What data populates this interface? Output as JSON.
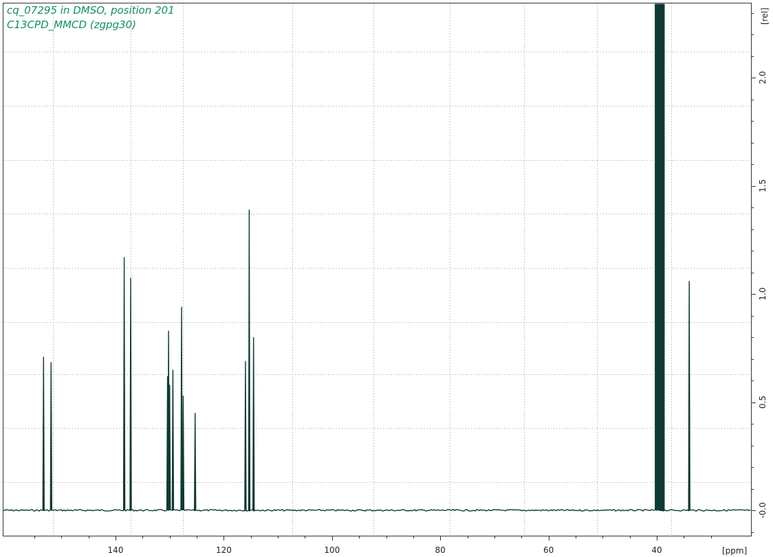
{
  "window": {
    "title_line1": "cq_07295 in DMSO, position 201",
    "title_line2": "C13CPD_MMCD (zgpg30)"
  },
  "colors": {
    "spectrum": "#0e3a34",
    "title": "#109060",
    "grid": "#9aa4a8",
    "axis": "#333333",
    "background": "#ffffff"
  },
  "chart_data": {
    "type": "line",
    "title": "cq_07295 in DMSO, position 201",
    "subtitle": "C13CPD_MMCD (zgpg30)",
    "xlabel": "[ppm]",
    "ylabel": "[rel]",
    "x_reversed": true,
    "xlim": [
      158.5,
      27.8
    ],
    "ylim": [
      -0.1,
      2.35
    ],
    "x_ticks": [
      140,
      120,
      100,
      80,
      60,
      40
    ],
    "y_ticks": [
      0.0,
      0.5,
      1.0,
      1.5,
      2.0
    ],
    "y_tick_labels": [
      "-0.0",
      "0.5",
      "1.0",
      "1.5",
      "2.0"
    ],
    "grid": true,
    "grid_x": [
      151.6,
      137.2,
      127.6,
      107.4,
      92.3,
      78.2,
      64.5,
      51.0,
      37.3
    ],
    "grid_y": [
      0.13,
      0.38,
      0.63,
      0.87,
      1.12,
      1.37,
      1.62,
      1.87,
      2.12,
      2.35
    ],
    "series": [
      {
        "peaks": [
          {
            "ppm": 153.3,
            "height": 0.71
          },
          {
            "ppm": 151.9,
            "height": 0.685
          },
          {
            "ppm": 138.4,
            "height": 1.17
          },
          {
            "ppm": 137.2,
            "height": 1.075
          },
          {
            "ppm": 130.4,
            "height": 0.62
          },
          {
            "ppm": 130.2,
            "height": 0.83
          },
          {
            "ppm": 130.0,
            "height": 0.58
          },
          {
            "ppm": 129.4,
            "height": 0.65
          },
          {
            "ppm": 127.8,
            "height": 0.94
          },
          {
            "ppm": 127.5,
            "height": 0.53
          },
          {
            "ppm": 125.3,
            "height": 0.45
          },
          {
            "ppm": 116.0,
            "height": 0.69
          },
          {
            "ppm": 115.3,
            "height": 1.39
          },
          {
            "ppm": 114.5,
            "height": 0.8
          },
          {
            "ppm": 39.7,
            "height": 2.35
          },
          {
            "ppm": 39.4,
            "height": 2.35
          },
          {
            "ppm": 39.2,
            "height": 2.35
          },
          {
            "ppm": 38.9,
            "height": 0.95
          },
          {
            "ppm": 34.0,
            "height": 1.06
          }
        ]
      }
    ]
  }
}
